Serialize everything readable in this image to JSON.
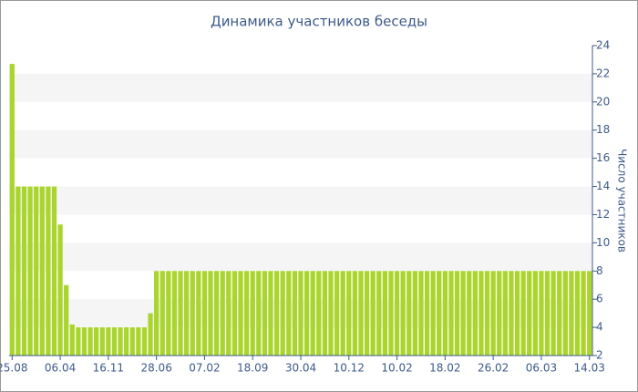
{
  "chart_data": {
    "type": "bar",
    "title": "Динамика участников беседы",
    "y_label": "Число участников",
    "categories": [
      "25.08",
      null,
      null,
      null,
      null,
      null,
      null,
      null,
      "06.04",
      null,
      null,
      null,
      null,
      null,
      null,
      null,
      "16.11",
      null,
      null,
      null,
      null,
      null,
      null,
      null,
      "28.06",
      null,
      null,
      null,
      null,
      null,
      null,
      null,
      "07.02",
      null,
      null,
      null,
      null,
      null,
      null,
      null,
      "18.09",
      null,
      null,
      null,
      null,
      null,
      null,
      null,
      "30.04",
      null,
      null,
      null,
      null,
      null,
      null,
      null,
      "10.12",
      null,
      null,
      null,
      null,
      null,
      null,
      null,
      "10.02",
      null,
      null,
      null,
      null,
      null,
      null,
      null,
      "18.02",
      null,
      null,
      null,
      null,
      null,
      null,
      null,
      "26.02",
      null,
      null,
      null,
      null,
      null,
      null,
      null,
      "06.03",
      null,
      null,
      null,
      null,
      null,
      null,
      null,
      "14.03"
    ],
    "values": [
      22.7,
      14,
      14,
      14,
      14,
      14,
      14,
      14,
      11.3,
      7,
      4.2,
      4,
      4,
      4,
      4,
      4,
      4,
      4,
      4,
      4,
      4,
      4,
      4,
      5,
      8,
      8,
      8,
      8,
      8,
      8,
      8,
      8,
      8,
      8,
      8,
      8,
      8,
      8,
      8,
      8,
      8,
      8,
      8,
      8,
      8,
      8,
      8,
      8,
      8,
      8,
      8,
      8,
      8,
      8,
      8,
      8,
      8,
      8,
      8,
      8,
      8,
      8,
      8,
      8,
      8,
      8,
      8,
      8,
      8,
      8,
      8,
      8,
      8,
      8,
      8,
      8,
      8,
      8,
      8,
      8,
      8,
      8,
      8,
      8,
      8,
      8,
      8,
      8,
      8,
      8,
      8,
      8,
      8,
      8,
      8,
      8,
      8
    ],
    "color": "#aad52d",
    "ylim": [
      2,
      24
    ],
    "yticks": [
      2,
      4,
      6,
      8,
      10,
      12,
      14,
      16,
      18,
      20,
      22,
      24
    ],
    "y_axis_side": "right",
    "grid": true
  }
}
